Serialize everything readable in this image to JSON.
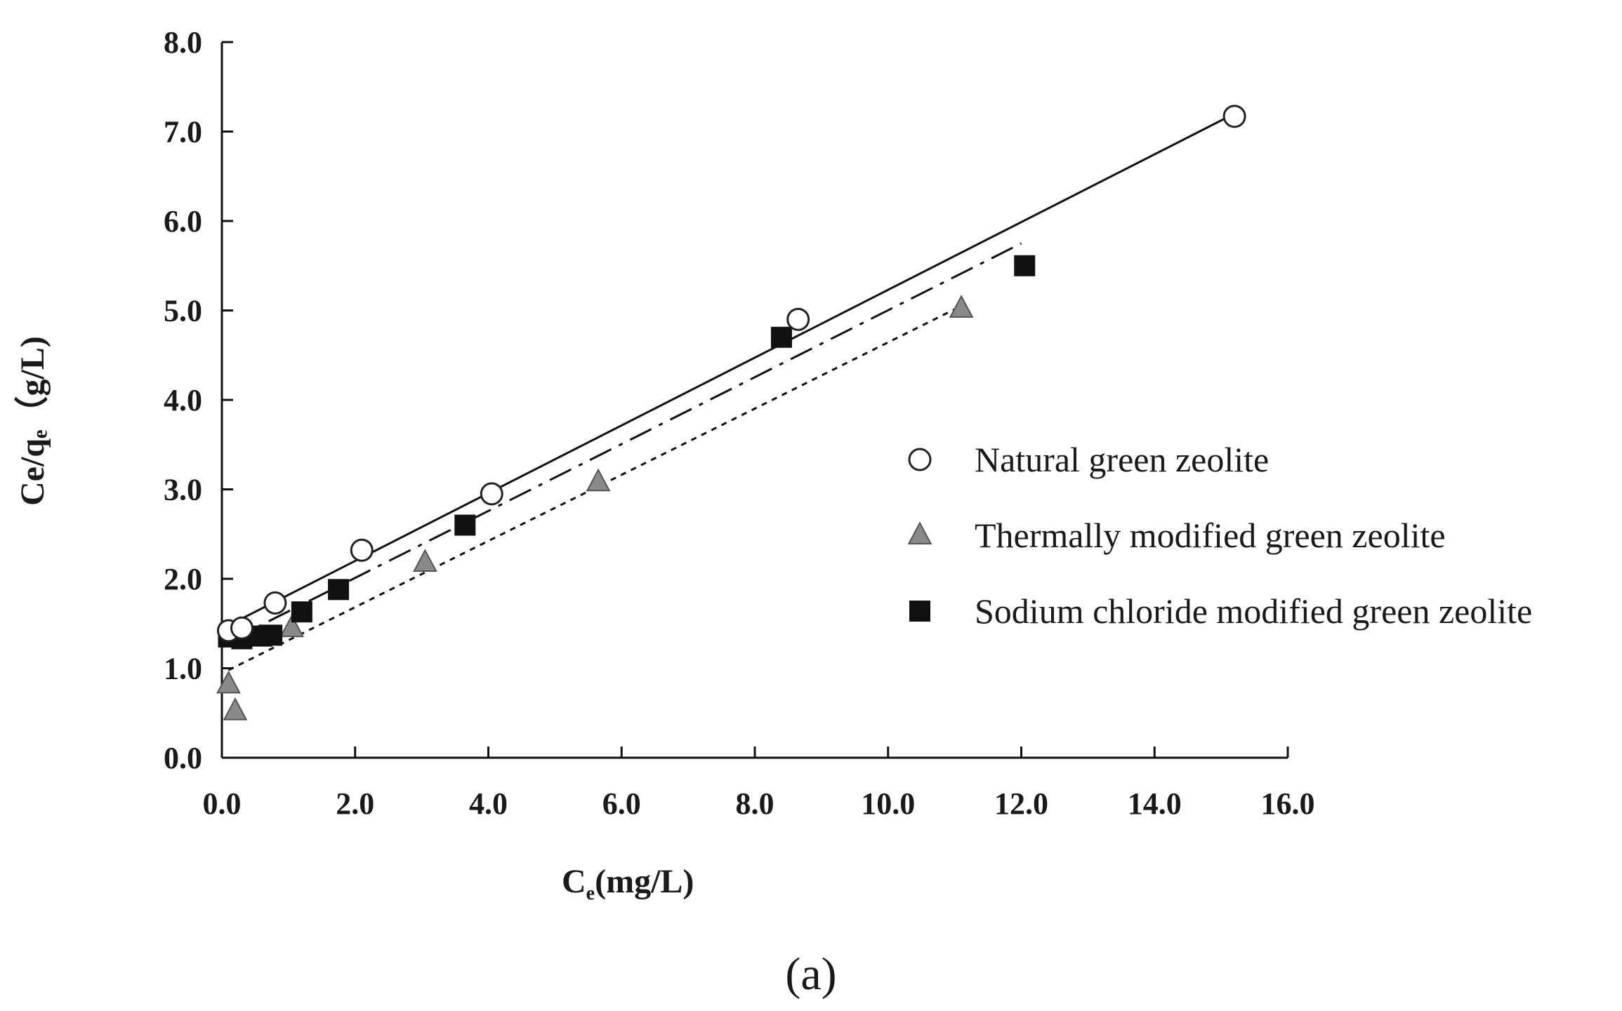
{
  "chart_data": {
    "type": "scatter",
    "xlabel_main": "C",
    "xlabel_sub": "e",
    "xlabel_unit": "(mg/L)",
    "ylabel": "Ce/qₑ（g/L)",
    "xlim": [
      0,
      16
    ],
    "ylim": [
      0,
      8
    ],
    "x_ticks": [
      "0.0",
      "2.0",
      "4.0",
      "6.0",
      "8.0",
      "10.0",
      "12.0",
      "14.0",
      "16.0"
    ],
    "y_ticks": [
      "0.0",
      "1.0",
      "2.0",
      "3.0",
      "4.0",
      "5.0",
      "6.0",
      "7.0",
      "8.0"
    ],
    "caption": "(a)",
    "legend_position": "right-center",
    "series": [
      {
        "name": "Natural green zeolite",
        "marker": "circle-open",
        "color": "#ffffff",
        "line_style": "solid",
        "points": [
          [
            0.1,
            1.42
          ],
          [
            0.3,
            1.45
          ],
          [
            0.8,
            1.73
          ],
          [
            2.1,
            2.32
          ],
          [
            4.05,
            2.95
          ],
          [
            8.65,
            4.9
          ],
          [
            15.2,
            7.17
          ]
        ],
        "fit": [
          [
            0.1,
            1.48
          ],
          [
            15.2,
            7.2
          ]
        ]
      },
      {
        "name": "Thermally modified green zeolite",
        "marker": "triangle",
        "color": "#8a8a8a",
        "line_style": "dotted",
        "points": [
          [
            0.1,
            0.82
          ],
          [
            0.2,
            0.52
          ],
          [
            1.05,
            1.45
          ],
          [
            3.05,
            2.18
          ],
          [
            5.65,
            3.08
          ],
          [
            11.1,
            5.02
          ]
        ],
        "fit": [
          [
            0.1,
            0.98
          ],
          [
            11.1,
            5.05
          ]
        ]
      },
      {
        "name": "Sodium chloride modified green zeolite",
        "marker": "square",
        "color": "#111111",
        "line_style": "dash-dot",
        "points": [
          [
            0.1,
            1.35
          ],
          [
            0.3,
            1.33
          ],
          [
            0.6,
            1.36
          ],
          [
            0.75,
            1.37
          ],
          [
            1.2,
            1.63
          ],
          [
            1.75,
            1.88
          ],
          [
            3.65,
            2.6
          ],
          [
            8.4,
            4.7
          ],
          [
            12.05,
            5.5
          ]
        ],
        "fit": [
          [
            0.1,
            1.3
          ],
          [
            12.0,
            5.75
          ]
        ]
      }
    ]
  }
}
